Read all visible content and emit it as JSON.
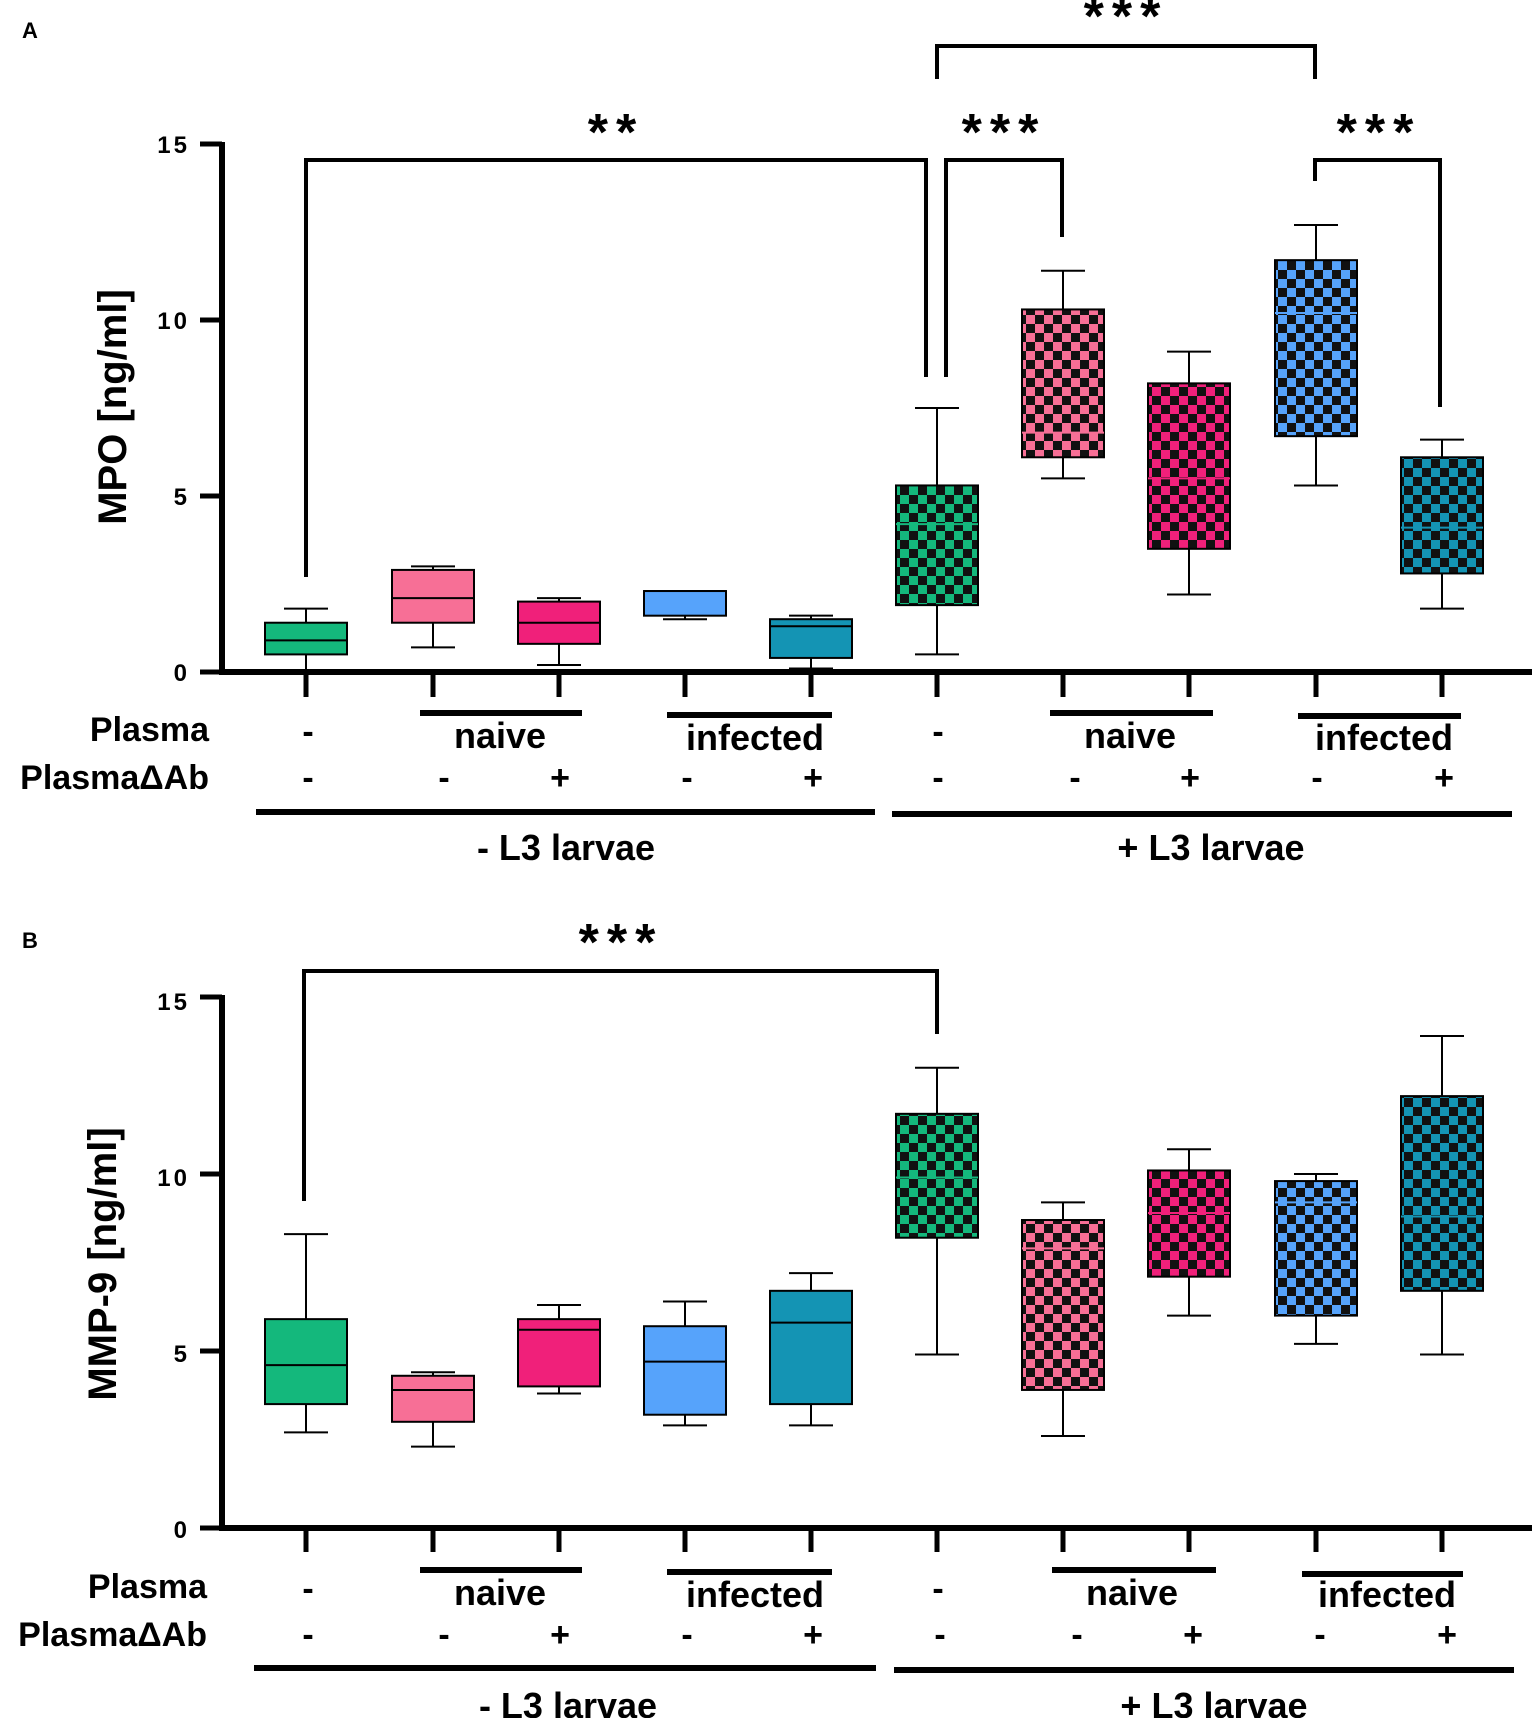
{
  "figure": {
    "groups": [
      "- L3 larvae",
      "+ L3 larvae"
    ],
    "row_labels": {
      "plasma": "Plasma",
      "plasma_dab": "PlasmaΔAb"
    },
    "plasma_row": [
      "-",
      "naive",
      "infected",
      "-",
      "naive",
      "infected"
    ],
    "plasma_dab_row": [
      "-",
      "-",
      "+",
      "-",
      "+",
      "-",
      "-",
      "+",
      "-",
      "+"
    ]
  },
  "chart_data": [
    {
      "type": "box",
      "panel": "A",
      "ylabel": "MPO [ng/ml]",
      "ylim": [
        0,
        15
      ],
      "yticks": [
        0,
        5,
        10,
        15
      ],
      "ytick_labels": [
        "0",
        "5",
        "10",
        "15"
      ],
      "boxes": [
        {
          "name": "-L3 control",
          "min": 0.0,
          "q1": 0.5,
          "median": 0.9,
          "q3": 1.4,
          "max": 1.8,
          "color": "#14b87c",
          "pattern": false
        },
        {
          "name": "-L3 naive plasma",
          "min": 0.7,
          "q1": 1.4,
          "median": 2.1,
          "q3": 2.9,
          "max": 3.0,
          "color": "#f76f96",
          "pattern": false
        },
        {
          "name": "-L3 naive PlasmaΔAb",
          "min": 0.2,
          "q1": 0.8,
          "median": 1.4,
          "q3": 2.0,
          "max": 2.1,
          "color": "#f0207a",
          "pattern": false
        },
        {
          "name": "-L3 infected plasma",
          "min": 1.5,
          "q1": 1.6,
          "median": 2.3,
          "q3": 2.3,
          "max": 2.3,
          "color": "#56a3fb",
          "pattern": false
        },
        {
          "name": "-L3 infected PlasmaΔAb",
          "min": 0.1,
          "q1": 0.4,
          "median": 1.3,
          "q3": 1.5,
          "max": 1.6,
          "color": "#1494b4",
          "pattern": false
        },
        {
          "name": "+L3 control",
          "min": 0.5,
          "q1": 1.9,
          "median": 4.2,
          "q3": 5.3,
          "max": 7.5,
          "color": "#14b87c",
          "pattern": true
        },
        {
          "name": "+L3 naive plasma",
          "min": 5.5,
          "q1": 6.1,
          "median": 6.8,
          "q3": 10.3,
          "max": 11.4,
          "color": "#f76f96",
          "pattern": true
        },
        {
          "name": "+L3 naive PlasmaΔAb",
          "min": 2.2,
          "q1": 3.5,
          "median": 5.5,
          "q3": 8.2,
          "max": 9.1,
          "color": "#f0207a",
          "pattern": true
        },
        {
          "name": "+L3 infected plasma",
          "min": 5.3,
          "q1": 6.7,
          "median": 10.2,
          "q3": 11.7,
          "max": 12.7,
          "color": "#56a3fb",
          "pattern": true
        },
        {
          "name": "+L3 infected PlasmaΔAb",
          "min": 1.8,
          "q1": 2.8,
          "median": 4.1,
          "q3": 6.1,
          "max": 6.6,
          "color": "#1494b4",
          "pattern": true
        }
      ],
      "significance": [
        {
          "from": 1,
          "to": 6,
          "label": "**"
        },
        {
          "from": 6,
          "to": 7,
          "label": "***"
        },
        {
          "from": 6,
          "to": 9,
          "label": "***"
        },
        {
          "from": 9,
          "to": 10,
          "label": "***"
        }
      ]
    },
    {
      "type": "box",
      "panel": "B",
      "ylabel": "MMP-9 [ng/ml]",
      "ylim": [
        0,
        15
      ],
      "yticks": [
        0,
        5,
        10,
        15
      ],
      "ytick_labels": [
        "0",
        "5",
        "10",
        "15"
      ],
      "boxes": [
        {
          "name": "-L3 control",
          "min": 2.7,
          "q1": 3.5,
          "median": 4.6,
          "q3": 5.9,
          "max": 8.3,
          "color": "#14b87c",
          "pattern": false
        },
        {
          "name": "-L3 naive plasma",
          "min": 2.3,
          "q1": 3.0,
          "median": 3.9,
          "q3": 4.3,
          "max": 4.4,
          "color": "#f76f96",
          "pattern": false
        },
        {
          "name": "-L3 naive PlasmaΔAb",
          "min": 3.8,
          "q1": 4.0,
          "median": 5.6,
          "q3": 5.9,
          "max": 6.3,
          "color": "#f0207a",
          "pattern": false
        },
        {
          "name": "-L3 infected plasma",
          "min": 2.9,
          "q1": 3.2,
          "median": 4.7,
          "q3": 5.7,
          "max": 6.4,
          "color": "#56a3fb",
          "pattern": false
        },
        {
          "name": "-L3 infected PlasmaΔAb",
          "min": 2.9,
          "q1": 3.5,
          "median": 5.8,
          "q3": 6.7,
          "max": 7.2,
          "color": "#1494b4",
          "pattern": false
        },
        {
          "name": "+L3 control",
          "min": 4.9,
          "q1": 8.2,
          "median": 9.9,
          "q3": 11.7,
          "max": 13.0,
          "color": "#14b87c",
          "pattern": true
        },
        {
          "name": "+L3 naive plasma",
          "min": 2.6,
          "q1": 3.9,
          "median": 7.9,
          "q3": 8.7,
          "max": 9.2,
          "color": "#f76f96",
          "pattern": true
        },
        {
          "name": "+L3 naive PlasmaΔAb",
          "min": 6.0,
          "q1": 7.1,
          "median": 8.9,
          "q3": 10.1,
          "max": 10.7,
          "color": "#f0207a",
          "pattern": true
        },
        {
          "name": "+L3 infected plasma",
          "min": 5.2,
          "q1": 6.0,
          "median": 9.2,
          "q3": 9.8,
          "max": 10.0,
          "color": "#56a3fb",
          "pattern": true
        },
        {
          "name": "+L3 infected PlasmaΔAb",
          "min": 4.9,
          "q1": 6.7,
          "median": 8.8,
          "q3": 12.2,
          "max": 13.9,
          "color": "#1494b4",
          "pattern": true
        }
      ],
      "significance": [
        {
          "from": 1,
          "to": 6,
          "label": "***"
        }
      ]
    }
  ]
}
